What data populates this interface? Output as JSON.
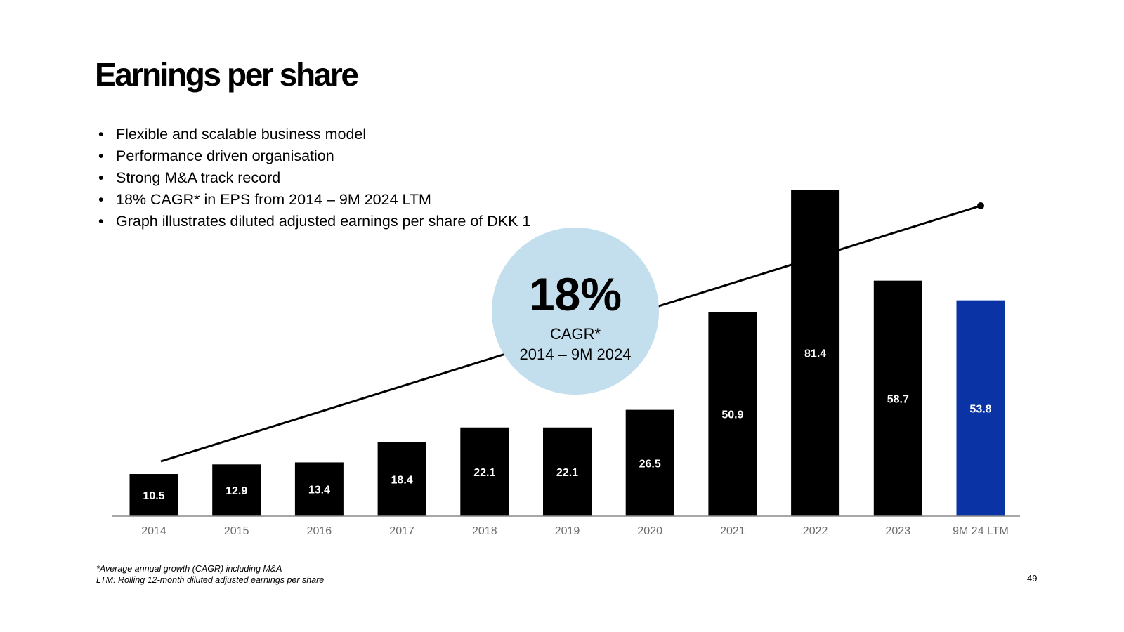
{
  "slide": {
    "title": "Earnings per share",
    "bullets": [
      "Flexible and scalable business model",
      "Performance driven organisation",
      "Strong M&A track record",
      "18% CAGR* in EPS from 2014 – 9M 2024 LTM",
      "Graph illustrates diluted adjusted earnings per share of DKK 1"
    ],
    "footnotes": [
      "*Average annual growth (CAGR) including M&A",
      "LTM: Rolling 12-month diluted adjusted earnings per share"
    ],
    "page_number": "49"
  },
  "badge": {
    "value": "18%",
    "line1": "CAGR*",
    "line2": "2014 – 9M 2024",
    "color": "#c3deed"
  },
  "chart_data": {
    "type": "bar",
    "categories": [
      "2014",
      "2015",
      "2016",
      "2017",
      "2018",
      "2019",
      "2020",
      "2021",
      "2022",
      "2023",
      "9M 24 LTM"
    ],
    "values": [
      10.5,
      12.9,
      13.4,
      18.4,
      22.1,
      22.1,
      26.5,
      50.9,
      81.4,
      58.7,
      53.8
    ],
    "value_labels": [
      "10.5",
      "12.9",
      "13.4",
      "18.4",
      "22.1",
      "22.1",
      "26.5",
      "50.9",
      "81.4",
      "58.7",
      "53.8"
    ],
    "ylim": [
      0,
      81.4
    ],
    "bar_color": "#000000",
    "highlight_color": "#0a33a6",
    "highlight_index": 10,
    "trend_line": {
      "from_category": "2014",
      "to_category": "9M 24 LTM",
      "cagr": "18%"
    },
    "grid": false,
    "legend": false
  }
}
